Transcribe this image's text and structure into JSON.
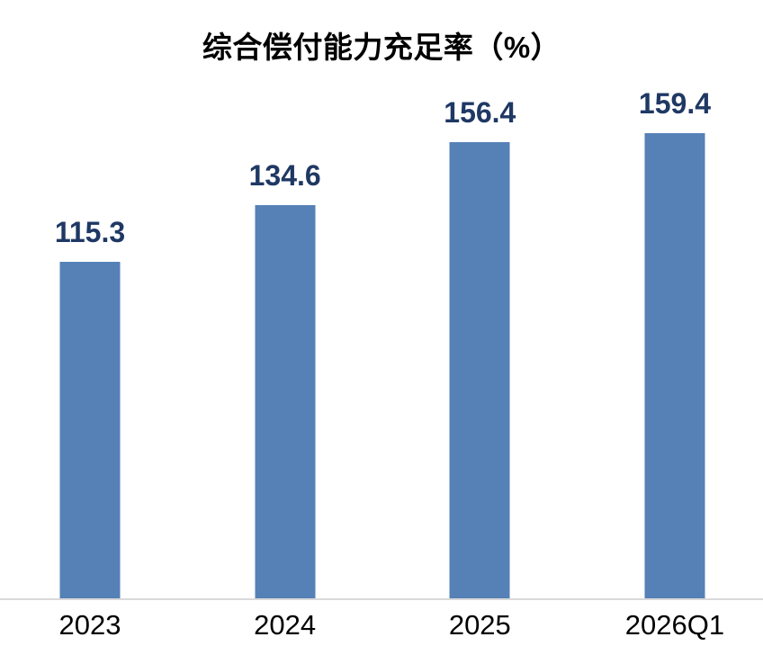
{
  "chart_data": {
    "type": "bar",
    "title": "综合偿付能力充足率（%）",
    "categories": [
      "2023",
      "2024",
      "2025",
      "2026Q1"
    ],
    "values": [
      115.3,
      134.6,
      156.4,
      159.4
    ],
    "value_labels": [
      "115.3",
      "134.6",
      "156.4",
      "159.4"
    ],
    "xlabel": "",
    "ylabel": "",
    "ylim": [
      0,
      180
    ],
    "grid": false,
    "legend": "none",
    "axis_ticks_visible": false,
    "colors": {
      "bar": "#5581b6",
      "value_label": "#1f3864",
      "axis_line": "#d9d9d9",
      "tick_label": "#000000",
      "title": "#000000",
      "background": "#ffffff"
    }
  }
}
